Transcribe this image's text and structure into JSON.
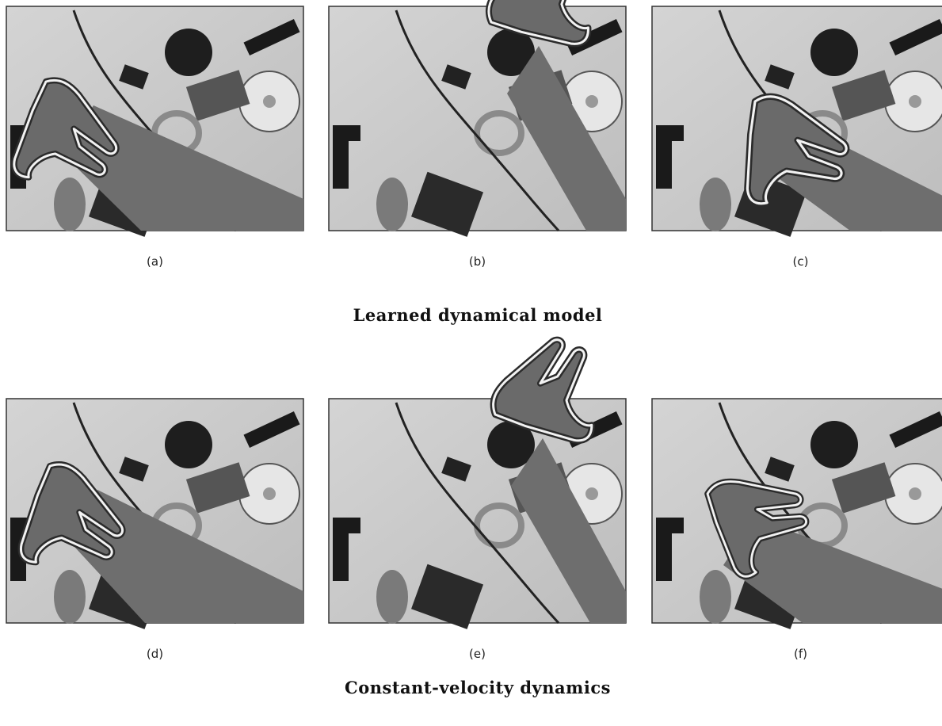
{
  "rows": [
    {
      "title": "Learned dynamical model",
      "panels": [
        "(a)",
        "(b)",
        "(c)"
      ]
    },
    {
      "title": "Constant-velocity dynamics",
      "panels": [
        "(d)",
        "(e)",
        "(f)"
      ]
    }
  ]
}
